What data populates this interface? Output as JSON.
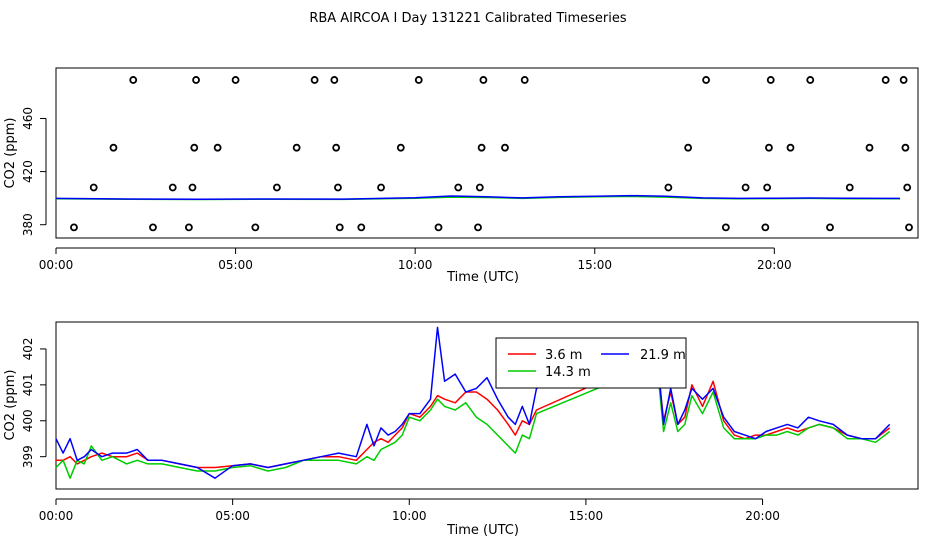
{
  "figure_title": "RBA AIRCOA I  Day 131221  Calibrated Timeseries",
  "colors": {
    "3.6 m": "#ff0000",
    "14.3 m": "#00cc00",
    "21.9 m": "#0000ff",
    "points": "#000000"
  },
  "chart_data": [
    {
      "type": "line",
      "xlabel": "Time (UTC)",
      "ylabel": "CO2 (ppm)",
      "xlim": [
        0,
        24
      ],
      "ylim": [
        370,
        498
      ],
      "x_ticks": [
        0,
        5,
        10,
        15,
        20
      ],
      "x_tick_labels": [
        "00:00",
        "05:00",
        "10:00",
        "15:00",
        "20:00"
      ],
      "y_ticks": [
        380,
        420,
        460
      ],
      "y_tick_labels": [
        "380",
        "420",
        "460"
      ],
      "series": [
        {
          "color": "#00cc00",
          "x": [
            0,
            2,
            4,
            6,
            8,
            10,
            11,
            12,
            13,
            14,
            15,
            16,
            17,
            18,
            19,
            20,
            21,
            22,
            23.5
          ],
          "y": [
            399.5,
            399.2,
            399.0,
            399.2,
            399.1,
            400.0,
            400.8,
            400.5,
            399.8,
            400.6,
            401.0,
            401.3,
            400.8,
            399.8,
            399.6,
            399.7,
            399.8,
            399.6,
            399.5
          ]
        },
        {
          "color": "#0000ff",
          "x": [
            0,
            2,
            4,
            6,
            8,
            10,
            11,
            12,
            13,
            14,
            15,
            16,
            17,
            18,
            19,
            20,
            21,
            22,
            23.5
          ],
          "y": [
            399.8,
            399.4,
            399.2,
            399.4,
            399.3,
            400.3,
            401.6,
            401.0,
            400.2,
            401.0,
            401.5,
            401.9,
            401.4,
            400.2,
            399.8,
            400.0,
            400.1,
            399.9,
            399.8
          ]
        }
      ],
      "points": {
        "x": [
          0.5,
          1.05,
          1.6,
          2.15,
          2.7,
          3.25,
          3.7,
          3.8,
          3.85,
          3.9,
          4.5,
          5.0,
          5.55,
          6.15,
          6.7,
          7.2,
          7.75,
          7.8,
          7.85,
          7.9,
          8.5,
          9.05,
          9.6,
          10.1,
          10.65,
          11.2,
          11.75,
          11.8,
          11.85,
          11.9,
          12.5,
          13.05,
          17.05,
          17.6,
          18.1,
          18.65,
          19.2,
          19.75,
          19.8,
          19.85,
          19.9,
          20.45,
          21.0,
          21.55,
          22.1,
          22.65,
          23.1,
          23.6,
          23.65,
          23.7,
          23.75
        ],
        "y": [
          378,
          408,
          438,
          489,
          378,
          408,
          378,
          408,
          438,
          489,
          438,
          489,
          378,
          408,
          438,
          489,
          489,
          438,
          408,
          378,
          378,
          408,
          438,
          489,
          378,
          408,
          378,
          408,
          438,
          489,
          438,
          489,
          408,
          438,
          489,
          378,
          408,
          378,
          408,
          438,
          489,
          438,
          489,
          378,
          408,
          438,
          489,
          489,
          438,
          408,
          378
        ]
      }
    },
    {
      "type": "line",
      "xlabel": "Time (UTC)",
      "ylabel": "CO2 (ppm)",
      "xlim": [
        0,
        24.4
      ],
      "ylim": [
        398.1,
        402.75
      ],
      "x_ticks": [
        0,
        5,
        10,
        15,
        20
      ],
      "x_tick_labels": [
        "00:00",
        "05:00",
        "10:00",
        "15:00",
        "20:00"
      ],
      "y_ticks": [
        399,
        400,
        401,
        402
      ],
      "y_tick_labels": [
        "399",
        "400",
        "401",
        "402"
      ],
      "legend": {
        "placement": "top-center",
        "entries": [
          "3.6 m",
          "21.9 m",
          "14.3 m"
        ]
      },
      "series": [
        {
          "name": "3.6 m",
          "color": "#ff0000",
          "x": [
            0,
            0.2,
            0.4,
            0.6,
            0.8,
            1.0,
            1.3,
            1.6,
            2.0,
            2.3,
            2.6,
            3.0,
            3.5,
            4.0,
            4.5,
            5.0,
            5.5,
            6.0,
            6.5,
            7.0,
            7.5,
            8.0,
            8.5,
            8.8,
            9.0,
            9.2,
            9.4,
            9.6,
            9.8,
            10.0,
            10.3,
            10.6,
            10.8,
            11.0,
            11.3,
            11.6,
            11.9,
            12.2,
            12.5,
            12.8,
            13.0,
            13.2,
            13.4,
            13.6,
            16.8,
            17.0,
            17.2,
            17.4,
            17.6,
            17.8,
            18.0,
            18.3,
            18.6,
            18.9,
            19.2,
            19.5,
            19.8,
            20.1,
            20.4,
            20.7,
            21.0,
            21.3,
            21.6,
            22.0,
            22.4,
            22.8,
            23.2,
            23.6
          ],
          "y": [
            398.9,
            398.9,
            399.0,
            398.8,
            398.9,
            399.0,
            399.1,
            399.0,
            399.0,
            399.1,
            398.9,
            398.9,
            398.8,
            398.7,
            398.7,
            398.75,
            398.8,
            398.7,
            398.8,
            398.9,
            399.0,
            399.0,
            398.9,
            399.2,
            399.4,
            399.5,
            399.4,
            399.6,
            399.8,
            400.2,
            400.1,
            400.4,
            400.7,
            400.6,
            400.5,
            400.8,
            400.8,
            400.6,
            400.3,
            399.9,
            399.6,
            400.0,
            399.9,
            400.3,
            401.7,
            401.9,
            400.0,
            400.8,
            399.9,
            400.1,
            401.0,
            400.4,
            401.1,
            400.0,
            399.6,
            399.5,
            399.6,
            399.6,
            399.7,
            399.8,
            399.7,
            399.8,
            399.9,
            399.8,
            399.6,
            399.5,
            399.5,
            399.8
          ]
        },
        {
          "name": "14.3 m",
          "color": "#00cc00",
          "x": [
            0,
            0.2,
            0.4,
            0.6,
            0.8,
            1.0,
            1.3,
            1.6,
            2.0,
            2.3,
            2.6,
            3.0,
            3.5,
            4.0,
            4.5,
            5.0,
            5.5,
            6.0,
            6.5,
            7.0,
            7.5,
            8.0,
            8.5,
            8.8,
            9.0,
            9.2,
            9.4,
            9.6,
            9.8,
            10.0,
            10.3,
            10.6,
            10.8,
            11.0,
            11.3,
            11.6,
            11.9,
            12.2,
            12.5,
            12.8,
            13.0,
            13.2,
            13.4,
            13.6,
            16.8,
            17.0,
            17.2,
            17.4,
            17.6,
            17.8,
            18.0,
            18.3,
            18.6,
            18.9,
            19.2,
            19.5,
            19.8,
            20.1,
            20.4,
            20.7,
            21.0,
            21.3,
            21.6,
            22.0,
            22.4,
            22.8,
            23.2,
            23.6
          ],
          "y": [
            398.7,
            398.9,
            398.4,
            398.9,
            398.8,
            399.3,
            398.9,
            399.0,
            398.8,
            398.9,
            398.8,
            398.8,
            398.7,
            398.6,
            398.6,
            398.7,
            398.75,
            398.6,
            398.7,
            398.9,
            398.9,
            398.9,
            398.8,
            399.0,
            398.9,
            399.2,
            399.3,
            399.4,
            399.6,
            400.1,
            400.0,
            400.3,
            400.6,
            400.4,
            400.3,
            400.5,
            400.1,
            399.9,
            399.6,
            399.3,
            399.1,
            399.6,
            399.5,
            400.2,
            401.5,
            401.7,
            399.7,
            400.5,
            399.7,
            399.9,
            400.7,
            400.2,
            400.8,
            399.8,
            399.5,
            399.5,
            399.5,
            399.6,
            399.6,
            399.7,
            399.6,
            399.8,
            399.9,
            399.8,
            399.5,
            399.5,
            399.4,
            399.7
          ]
        },
        {
          "name": "21.9 m",
          "color": "#0000ff",
          "x": [
            0,
            0.2,
            0.4,
            0.6,
            0.8,
            1.0,
            1.3,
            1.6,
            2.0,
            2.3,
            2.6,
            3.0,
            3.5,
            4.0,
            4.5,
            5.0,
            5.5,
            6.0,
            6.5,
            7.0,
            7.5,
            8.0,
            8.5,
            8.8,
            9.0,
            9.2,
            9.4,
            9.6,
            9.8,
            10.0,
            10.3,
            10.6,
            10.8,
            11.0,
            11.3,
            11.6,
            11.9,
            12.2,
            12.5,
            12.8,
            13.0,
            13.2,
            13.4,
            13.6,
            16.8,
            17.0,
            17.2,
            17.4,
            17.6,
            17.8,
            18.0,
            18.3,
            18.6,
            18.9,
            19.2,
            19.5,
            19.8,
            20.1,
            20.4,
            20.7,
            21.0,
            21.3,
            21.6,
            22.0,
            22.4,
            22.8,
            23.2,
            23.6
          ],
          "y": [
            399.5,
            399.1,
            399.5,
            398.9,
            399.0,
            399.2,
            399.0,
            399.1,
            399.1,
            399.2,
            398.9,
            398.9,
            398.8,
            398.7,
            398.4,
            398.75,
            398.8,
            398.7,
            398.8,
            398.9,
            399.0,
            399.1,
            399.0,
            399.9,
            399.3,
            399.8,
            399.6,
            399.7,
            399.9,
            400.2,
            400.2,
            400.6,
            402.6,
            401.1,
            401.3,
            400.8,
            400.9,
            401.2,
            400.6,
            400.1,
            399.9,
            400.4,
            399.9,
            400.9,
            402.2,
            402.0,
            399.9,
            400.9,
            399.9,
            400.3,
            400.9,
            400.6,
            400.9,
            400.1,
            399.7,
            399.6,
            399.5,
            399.7,
            399.8,
            399.9,
            399.8,
            400.1,
            400.0,
            399.9,
            399.6,
            399.5,
            399.5,
            399.9
          ]
        }
      ]
    }
  ]
}
